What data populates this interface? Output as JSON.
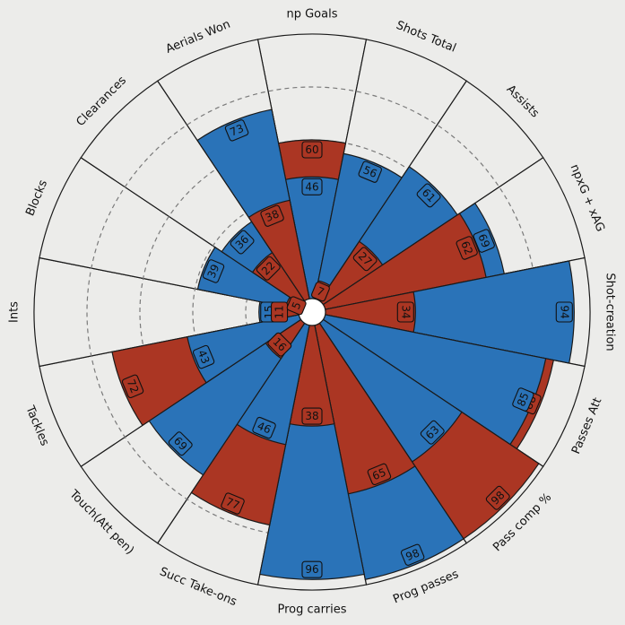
{
  "chart_data": {
    "type": "pizza",
    "range": [
      0,
      100
    ],
    "rings": [
      20,
      40,
      60,
      80,
      100
    ],
    "parameters": [
      "np Goals",
      "Shots Total",
      "Assists",
      "npxG + xAG",
      "Shot-creation",
      "Passes Att",
      "Pass comp %",
      "Prog passes",
      "Prog carries",
      "Succ Take-ons",
      "Touch(Att pen)",
      "Tackles",
      "Ints",
      "Blocks",
      "Clearances",
      "Aerials Won"
    ],
    "series": [
      {
        "values": [
          46,
          56,
          61,
          69,
          94,
          85,
          63,
          98,
          96,
          46,
          69,
          43,
          15,
          39,
          36,
          73
        ]
      },
      {
        "values": [
          60,
          7,
          27,
          62,
          34,
          88,
          98,
          65,
          38,
          77,
          16,
          72,
          11,
          5,
          22,
          38
        ]
      }
    ],
    "colors": {
      "blue": "#2a73b8",
      "red": "#ab3623",
      "background": "#ececea",
      "slice_background": "#ececea",
      "edge": "#1a1a1a",
      "grid": "#7a7a7a"
    }
  }
}
